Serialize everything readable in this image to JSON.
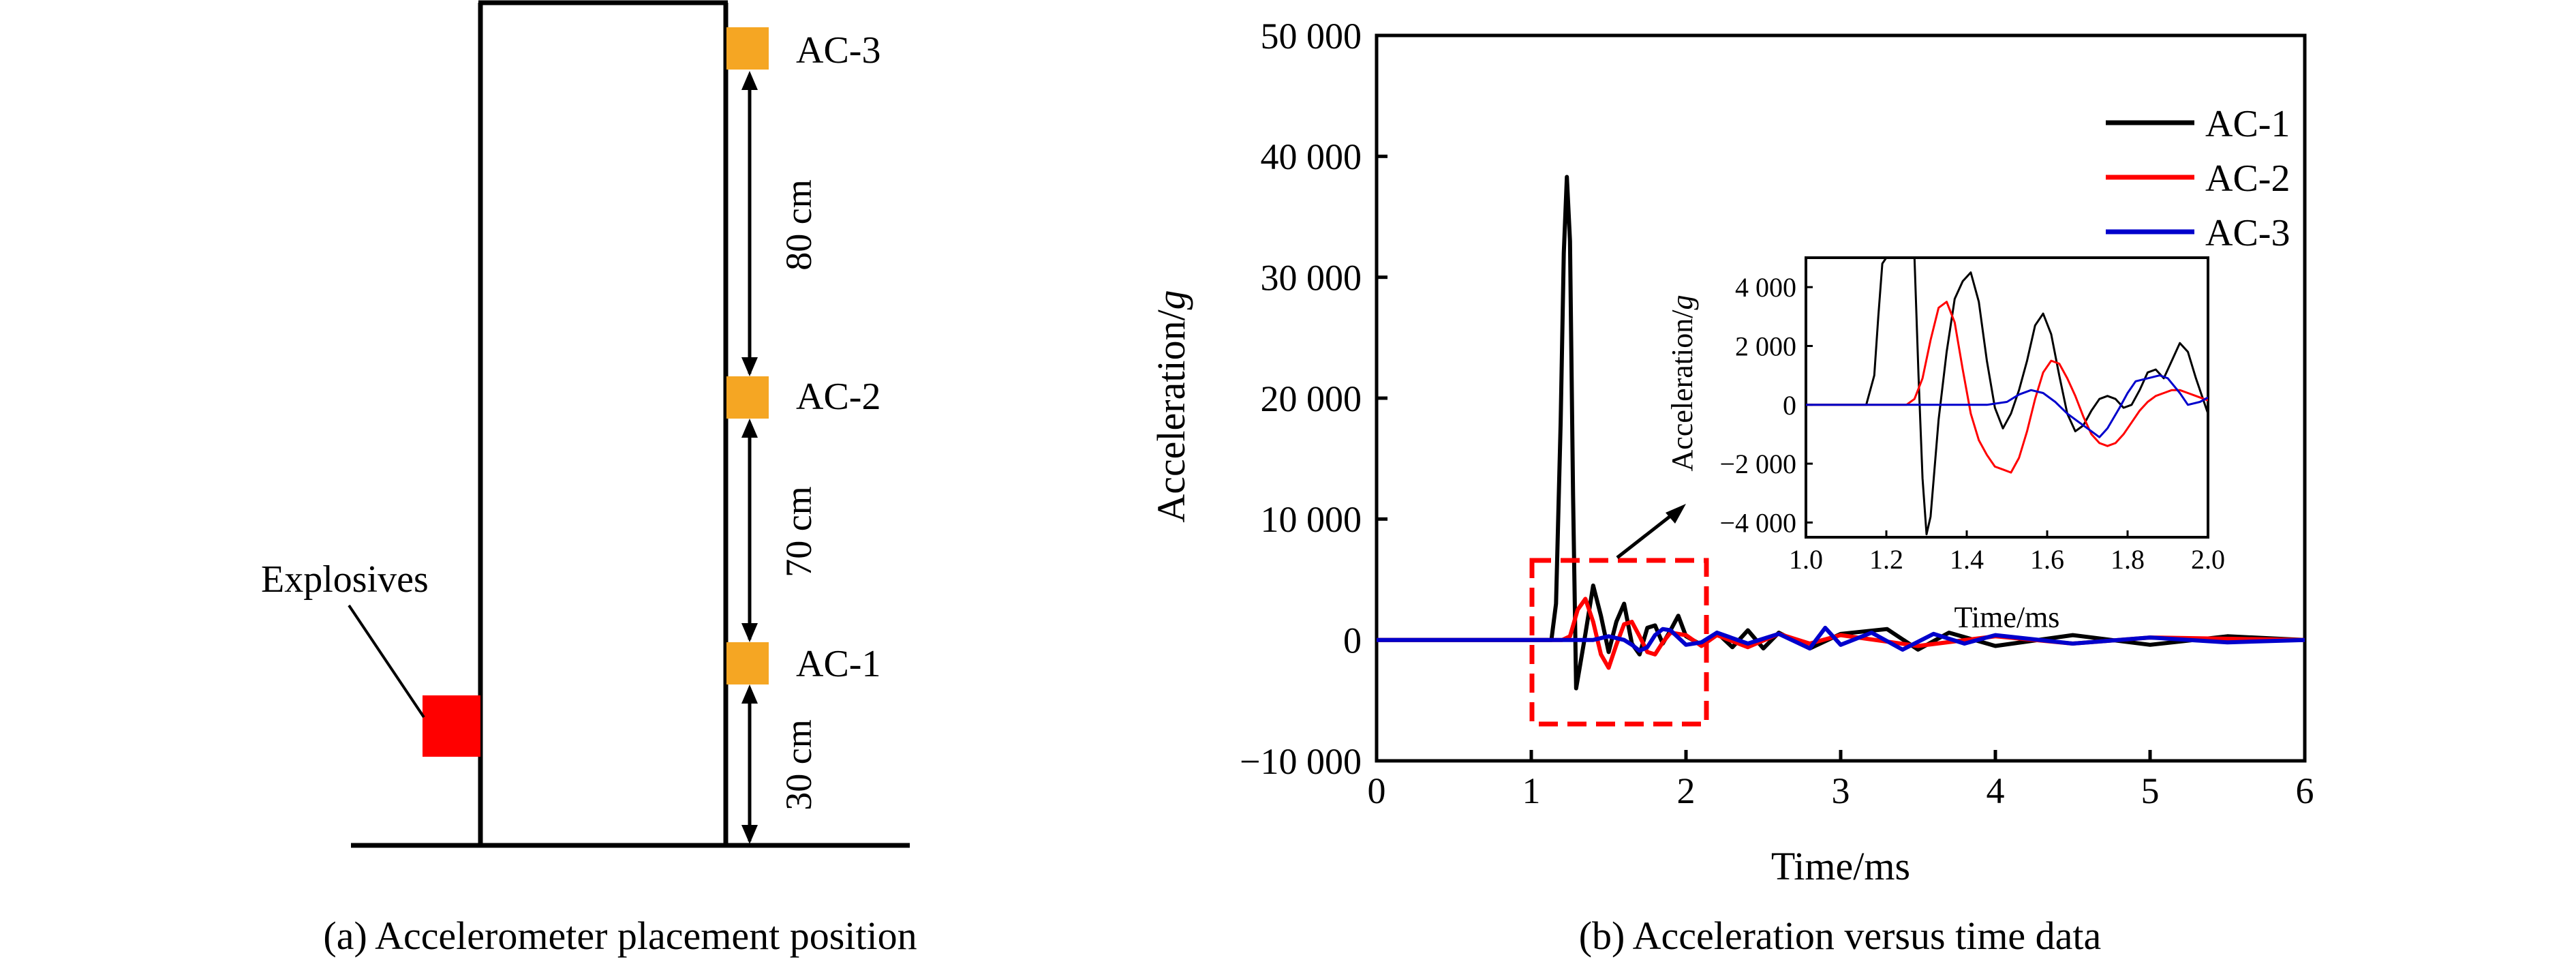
{
  "panel_a": {
    "caption": "(a) Accelerometer placement position",
    "explosives_label": "Explosives",
    "sensor_labels": [
      "AC-3",
      "AC-2",
      "AC-1"
    ],
    "distances": [
      "80 cm",
      "70 cm",
      "30 cm"
    ],
    "colors": {
      "sensor": "#F5A623",
      "explosive": "#FF0000",
      "structure": "#000000"
    }
  },
  "panel_b": {
    "caption": "(b) Acceleration versus time data"
  },
  "chart_data": [
    {
      "id": "main",
      "type": "line",
      "xlabel": "Time/ms",
      "ylabel_prefix": "Acceleration/",
      "ylabel_italic": "g",
      "xlim": [
        0,
        6
      ],
      "ylim": [
        -10000,
        50000
      ],
      "x_ticks": [
        0,
        1,
        2,
        3,
        4,
        5,
        6
      ],
      "x_tick_labels": [
        "0",
        "1",
        "2",
        "3",
        "4",
        "5",
        "6"
      ],
      "y_ticks": [
        -10000,
        0,
        10000,
        20000,
        30000,
        40000,
        50000
      ],
      "y_tick_labels": [
        "−10 000",
        "0",
        "10 000",
        "20 000",
        "30 000",
        "40 000",
        "50 000"
      ],
      "grid": false,
      "legend": "top-right",
      "series": [
        {
          "name": "AC-1",
          "color": "#000000",
          "x": [
            0,
            1.13,
            1.16,
            1.19,
            1.21,
            1.23,
            1.25,
            1.27,
            1.29,
            1.31,
            1.35,
            1.4,
            1.45,
            1.5,
            1.55,
            1.6,
            1.65,
            1.7,
            1.75,
            1.8,
            1.85,
            1.9,
            1.95,
            2.0,
            2.1,
            2.2,
            2.3,
            2.4,
            2.5,
            2.6,
            2.8,
            3.0,
            3.3,
            3.5,
            3.7,
            4.0,
            4.5,
            5.0,
            5.5,
            6.0
          ],
          "y": [
            0,
            0,
            3000,
            18000,
            32000,
            38300,
            33000,
            12000,
            -4000,
            -2500,
            500,
            4500,
            2000,
            -1000,
            1500,
            3000,
            -300,
            -1200,
            1000,
            1200,
            -300,
            800,
            2000,
            300,
            -400,
            600,
            -600,
            800,
            -700,
            600,
            -700,
            500,
            900,
            -800,
            600,
            -500,
            400,
            -400,
            300,
            0
          ]
        },
        {
          "name": "AC-2",
          "color": "#FF0000",
          "x": [
            0,
            1.2,
            1.25,
            1.3,
            1.35,
            1.4,
            1.45,
            1.5,
            1.55,
            1.6,
            1.65,
            1.7,
            1.75,
            1.8,
            1.85,
            1.9,
            2.0,
            2.1,
            2.2,
            2.4,
            2.6,
            2.8,
            3.0,
            3.5,
            4.0,
            4.5,
            5.0,
            6.0
          ],
          "y": [
            0,
            0,
            300,
            2500,
            3400,
            1500,
            -1200,
            -2300,
            -400,
            1300,
            1500,
            300,
            -1000,
            -1200,
            -200,
            600,
            400,
            -500,
            400,
            -600,
            500,
            -300,
            400,
            -500,
            300,
            -300,
            200,
            0
          ]
        },
        {
          "name": "AC-3",
          "color": "#0000CC",
          "x": [
            0,
            1.4,
            1.5,
            1.6,
            1.65,
            1.7,
            1.75,
            1.8,
            1.85,
            1.9,
            2.0,
            2.1,
            2.2,
            2.4,
            2.6,
            2.8,
            2.9,
            3.0,
            3.2,
            3.4,
            3.6,
            3.8,
            4.0,
            4.5,
            5.0,
            5.5,
            6.0
          ],
          "y": [
            0,
            0,
            300,
            0,
            -400,
            -900,
            -600,
            400,
            900,
            800,
            -400,
            -200,
            600,
            -300,
            500,
            -700,
            1000,
            -400,
            600,
            -800,
            500,
            -300,
            400,
            -300,
            200,
            -200,
            0
          ]
        }
      ]
    },
    {
      "id": "inset",
      "type": "line",
      "xlabel": "Time/ms",
      "ylabel_prefix": "Acceleration/",
      "ylabel_italic": "g",
      "xlim": [
        1.0,
        2.0
      ],
      "ylim": [
        -4500,
        5000
      ],
      "x_ticks": [
        1.0,
        1.2,
        1.4,
        1.6,
        1.8,
        2.0
      ],
      "x_tick_labels": [
        "1.0",
        "1.2",
        "1.4",
        "1.6",
        "1.8",
        "2.0"
      ],
      "y_ticks": [
        -4000,
        -2000,
        0,
        2000,
        4000
      ],
      "y_tick_labels": [
        "−4 000",
        "−2 000",
        "0",
        "2 000",
        "4 000"
      ],
      "grid": false,
      "series": [
        {
          "name": "AC-1",
          "color": "#000000",
          "x": [
            1.0,
            1.15,
            1.17,
            1.18,
            1.19,
            1.2,
            1.27,
            1.28,
            1.29,
            1.3,
            1.31,
            1.33,
            1.35,
            1.37,
            1.39,
            1.41,
            1.43,
            1.45,
            1.47,
            1.49,
            1.51,
            1.53,
            1.55,
            1.57,
            1.59,
            1.61,
            1.63,
            1.65,
            1.67,
            1.69,
            1.71,
            1.73,
            1.75,
            1.77,
            1.79,
            1.81,
            1.83,
            1.85,
            1.87,
            1.89,
            1.91,
            1.93,
            1.95,
            1.97,
            1.99,
            2.0
          ],
          "y": [
            0,
            0,
            1000,
            3000,
            4800,
            5000,
            5000,
            1000,
            -2500,
            -4400,
            -3800,
            -500,
            1800,
            3600,
            4200,
            4500,
            3500,
            1500,
            -100,
            -800,
            -300,
            500,
            1500,
            2700,
            3100,
            2400,
            1000,
            -300,
            -900,
            -700,
            -200,
            200,
            300,
            200,
            -100,
            0,
            500,
            1100,
            1200,
            900,
            1500,
            2100,
            1800,
            900,
            100,
            -300
          ]
        },
        {
          "name": "AC-2",
          "color": "#FF0000",
          "x": [
            1.0,
            1.25,
            1.27,
            1.29,
            1.31,
            1.33,
            1.35,
            1.37,
            1.39,
            1.41,
            1.43,
            1.45,
            1.47,
            1.49,
            1.51,
            1.53,
            1.55,
            1.57,
            1.59,
            1.61,
            1.63,
            1.65,
            1.67,
            1.69,
            1.71,
            1.73,
            1.75,
            1.77,
            1.79,
            1.81,
            1.83,
            1.85,
            1.87,
            1.89,
            1.91,
            1.93,
            1.95,
            1.97,
            1.99,
            2.0
          ],
          "y": [
            0,
            0,
            200,
            900,
            2200,
            3300,
            3500,
            2800,
            1200,
            -300,
            -1200,
            -1700,
            -2100,
            -2200,
            -2300,
            -1800,
            -900,
            200,
            1100,
            1500,
            1400,
            900,
            300,
            -400,
            -1000,
            -1300,
            -1400,
            -1300,
            -1000,
            -600,
            -200,
            100,
            300,
            400,
            500,
            500,
            400,
            300,
            200,
            150
          ]
        },
        {
          "name": "AC-3",
          "color": "#0000CC",
          "x": [
            1.0,
            1.4,
            1.45,
            1.5,
            1.53,
            1.56,
            1.59,
            1.62,
            1.65,
            1.68,
            1.71,
            1.73,
            1.75,
            1.78,
            1.8,
            1.82,
            1.85,
            1.88,
            1.9,
            1.93,
            1.95,
            1.98,
            2.0
          ],
          "y": [
            0,
            0,
            0,
            100,
            350,
            500,
            400,
            100,
            -300,
            -600,
            -900,
            -1100,
            -800,
            -100,
            400,
            800,
            900,
            1000,
            900,
            400,
            0,
            100,
            250
          ]
        }
      ]
    }
  ]
}
